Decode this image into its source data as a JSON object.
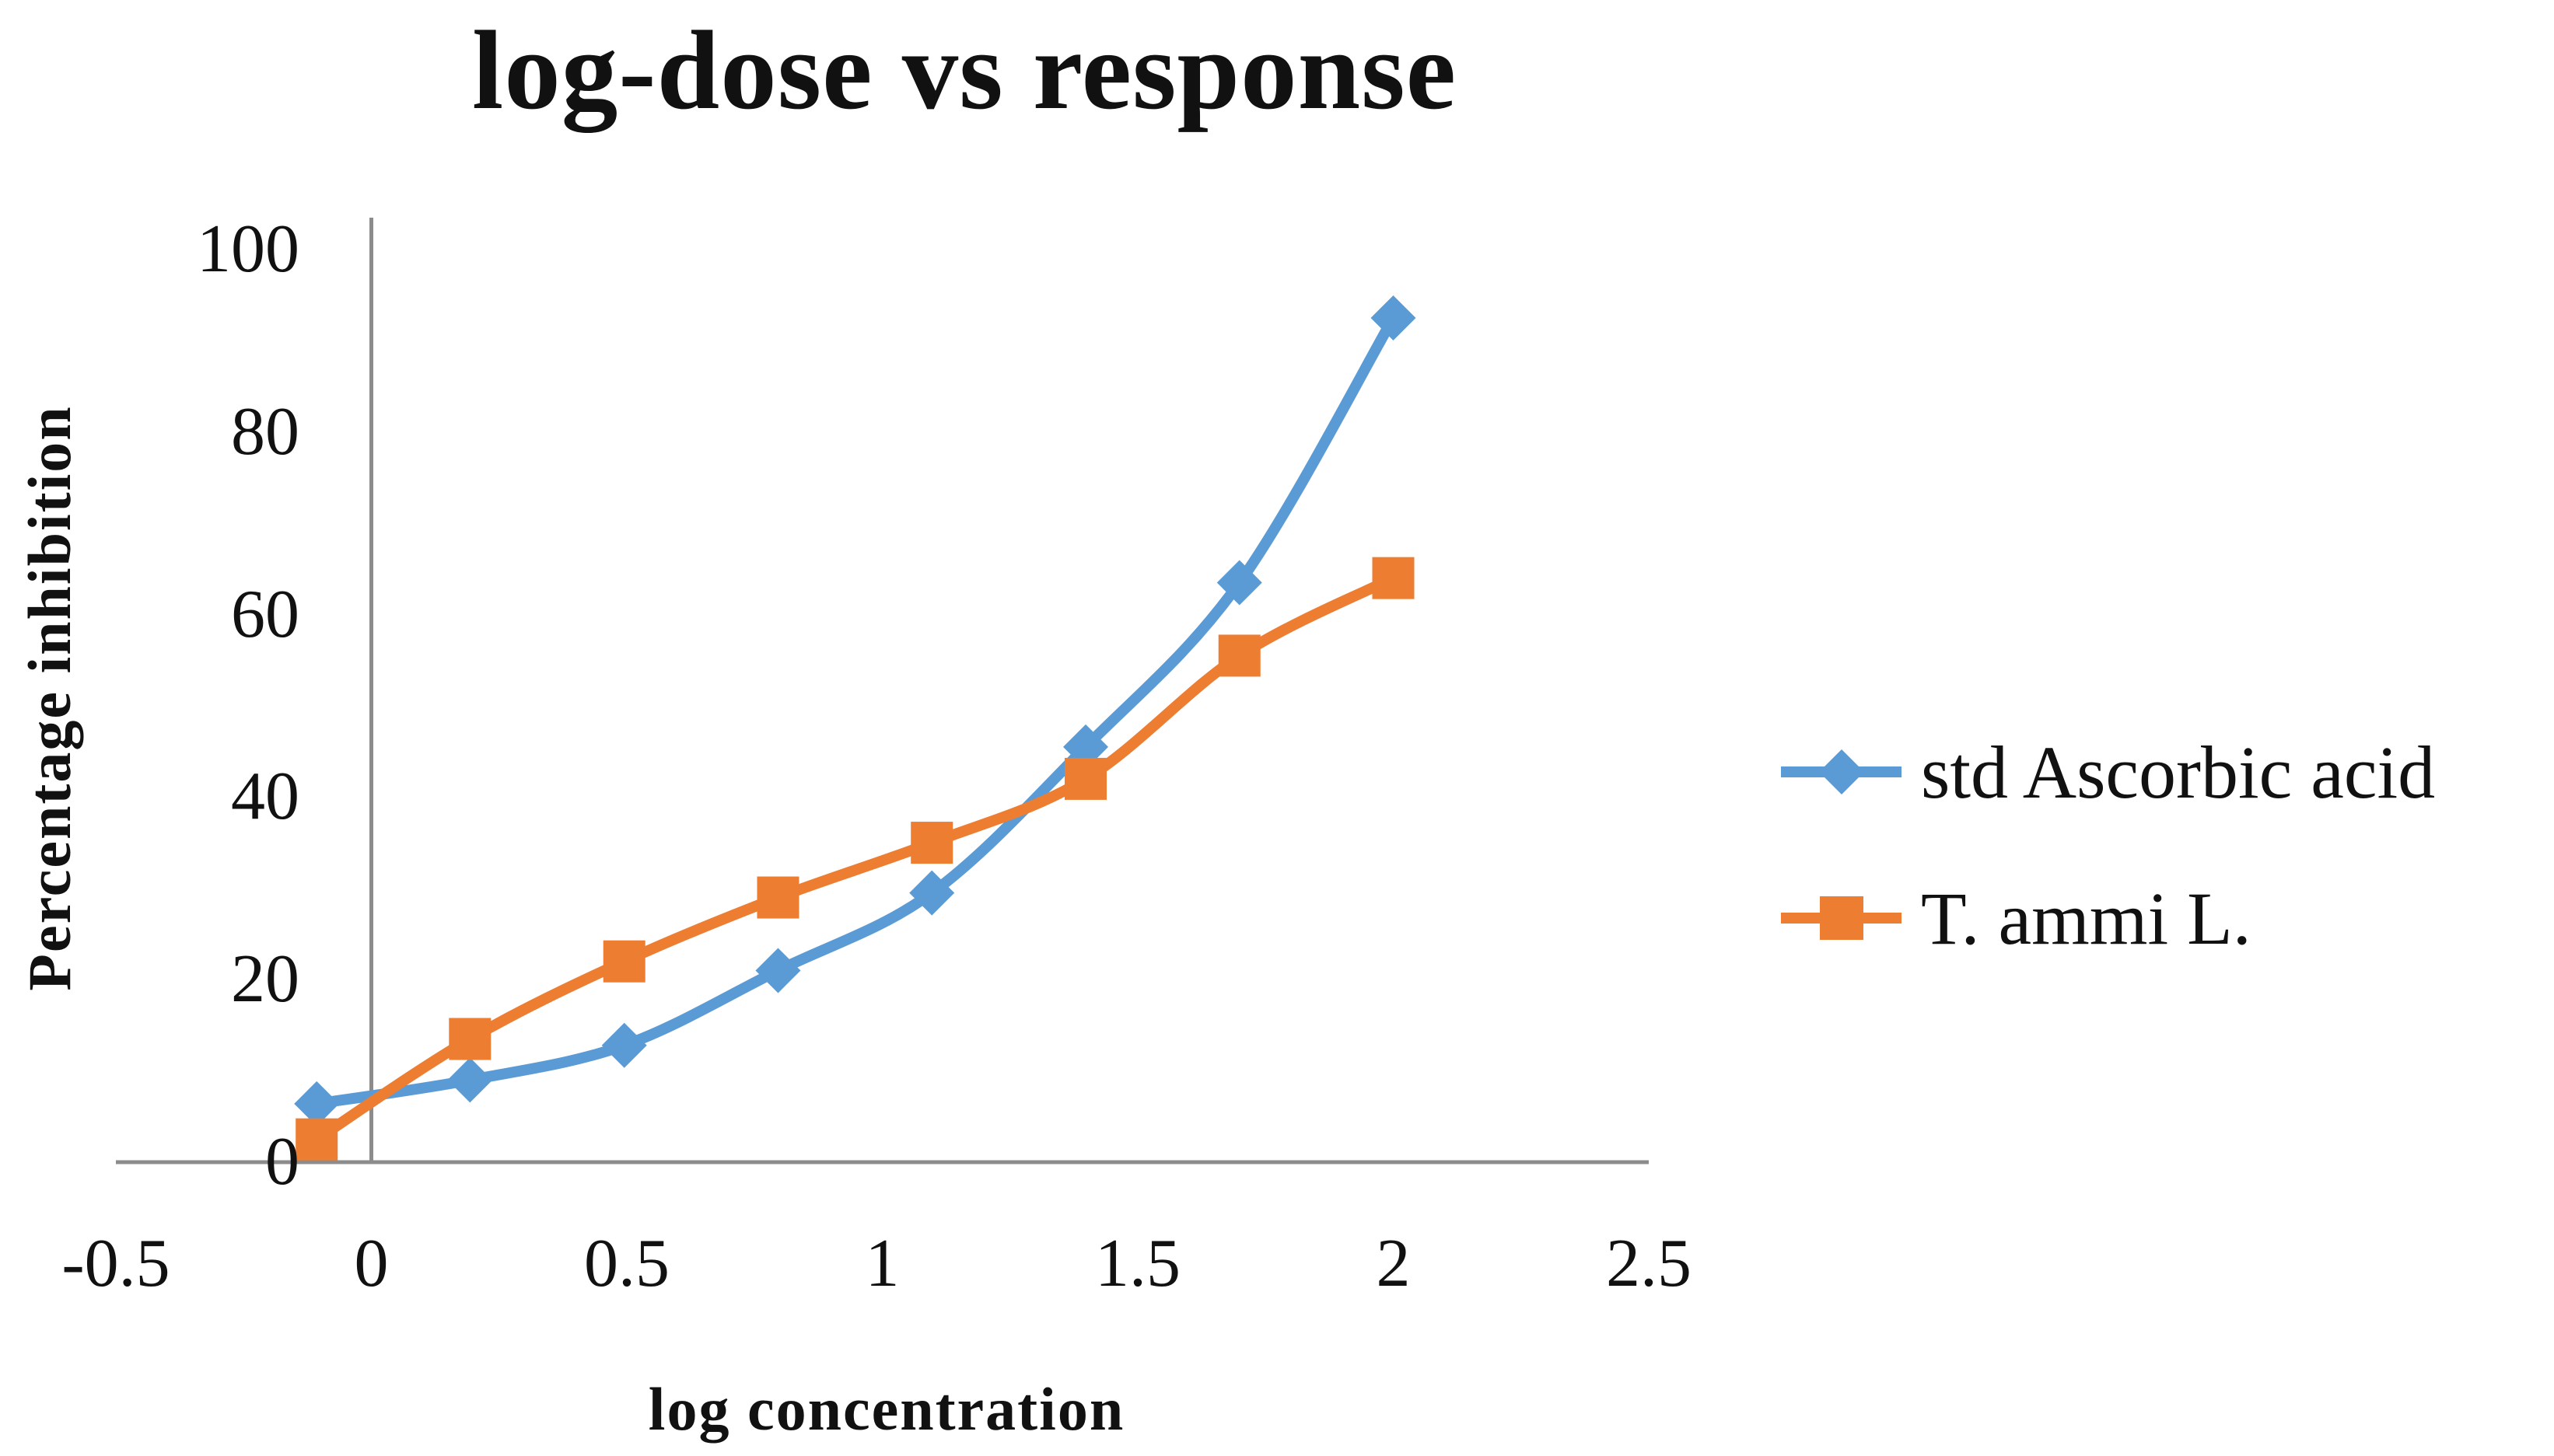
{
  "title": "log-dose vs response",
  "chart_data": {
    "type": "line",
    "title": "log-dose vs response",
    "xlabel": "log concentration",
    "ylabel": "Percentage inhibition",
    "xlim": [
      -0.5,
      2.5
    ],
    "ylim": [
      0,
      100
    ],
    "x_ticks": [
      -0.5,
      0,
      0.5,
      1,
      1.5,
      2,
      2.5
    ],
    "y_ticks": [
      0,
      20,
      40,
      60,
      80,
      100
    ],
    "grid": false,
    "legend_position": "right",
    "line_style": "smooth",
    "x": [
      -0.107,
      0.193,
      0.495,
      0.796,
      1.097,
      1.398,
      1.699,
      2.0
    ],
    "series": [
      {
        "name": "std Ascorbic acid",
        "color": "#5B9BD5",
        "marker": "diamond",
        "values": [
          6.4,
          9.0,
          12.8,
          21.0,
          29.5,
          45.5,
          63.5,
          92.5
        ]
      },
      {
        "name": "T. ammi L.",
        "color": "#ED7D31",
        "marker": "square",
        "values": [
          2.5,
          13.5,
          22.0,
          29.0,
          35.0,
          42.0,
          55.5,
          64.0
        ]
      }
    ],
    "axis_color": "#8C8C8C",
    "text_color": "#111111"
  }
}
